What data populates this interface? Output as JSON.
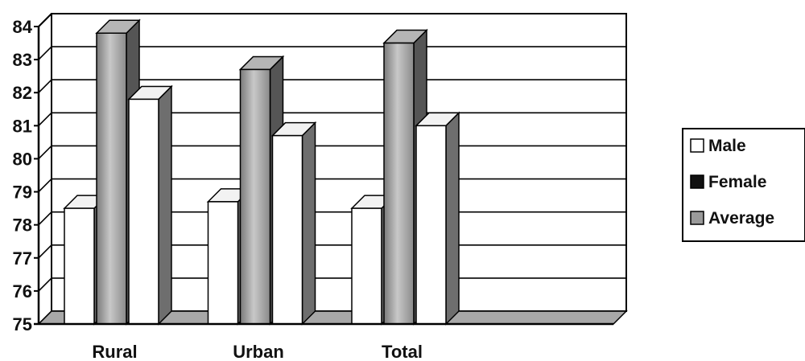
{
  "chart_data": {
    "type": "bar",
    "categories": [
      "Rural",
      "Urban",
      "Total",
      ""
    ],
    "series": [
      {
        "name": "Male",
        "values": [
          78.5,
          78.7,
          78.5,
          null
        ]
      },
      {
        "name": "Female",
        "values": [
          83.8,
          82.7,
          83.5,
          null
        ]
      },
      {
        "name": "Average",
        "values": [
          81.8,
          80.7,
          81.0,
          null
        ]
      }
    ],
    "ylim": [
      75,
      84
    ],
    "yticks": [
      "75",
      "76",
      "77",
      "78",
      "79",
      "80",
      "81",
      "82",
      "83",
      "84"
    ],
    "grid": true,
    "legend_position": "right",
    "colors": {
      "Male": "#ffffff",
      "Female": "#111111",
      "Average": "#9a9a9a"
    }
  }
}
